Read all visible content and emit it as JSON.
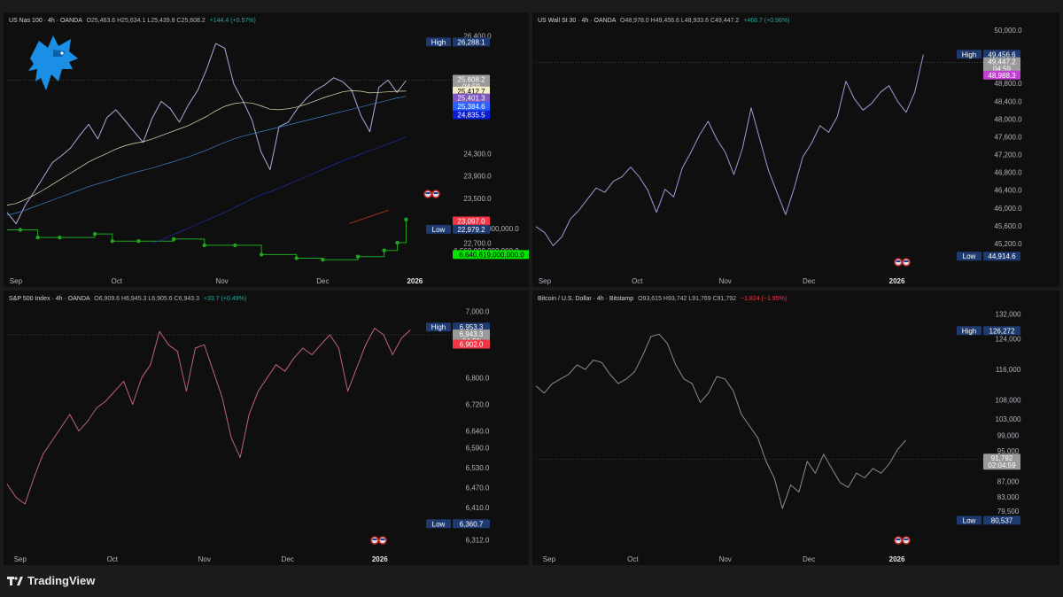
{
  "app": {
    "brand": "TradingView"
  },
  "colors": {
    "background": "#0f0f0f",
    "gap": "#1b1b1b",
    "high_low_badge": "#1e3a6e",
    "price_badge": "#9a9a9a",
    "red_badge": "#f23645",
    "green_badge": "#00e600",
    "purple_badge": "#7e57c2",
    "blue_badge": "#2962ff",
    "navy_badge": "#0b1fd1",
    "magenta_badge": "#c040d0"
  },
  "chart_data": [
    {
      "type": "line",
      "title": "US Nas 100 · 4h · OANDA",
      "ohlc": "O25,463.6 H25,634.1 L25,439.8 C25,608.2",
      "change": "+144.4 (+0.57%)",
      "change_color": "#26a69a",
      "line_color": "#b0a8d8",
      "x_ticks": [
        "Sep",
        "Oct",
        "Nov",
        "Dec",
        "2026"
      ],
      "x_tick_pos": [
        0.02,
        0.25,
        0.49,
        0.72,
        0.93
      ],
      "y_ticks": [
        26400,
        24300,
        23900,
        23500,
        22700
      ],
      "y_range": [
        22300,
        26500
      ],
      "secondary_y_ticks": [
        "6,600,000,000,000.0",
        "6,560,000,000,000.0"
      ],
      "badges": [
        {
          "kind": "high",
          "label": "High",
          "value": "26,288.1",
          "y": 26288.1,
          "color": "#1e3a6e"
        },
        {
          "kind": "last",
          "value": "25,608.2",
          "sub": "04:59",
          "y": 25608.2,
          "color": "#9a9a9a"
        },
        {
          "kind": "value",
          "value": "25,412.7",
          "y": 25412.7,
          "color": "#f5efc8",
          "text": "#000"
        },
        {
          "kind": "value",
          "value": "25,401.3",
          "y": 25290,
          "color": "#7e57c2"
        },
        {
          "kind": "value",
          "value": "25,384.6",
          "y": 25140,
          "color": "#2962ff"
        },
        {
          "kind": "value",
          "value": "24,835.5",
          "y": 24990,
          "color": "#0b1fd1"
        },
        {
          "kind": "value",
          "value": "23,097.0",
          "y": 23097,
          "color": "#f23645"
        },
        {
          "kind": "low",
          "label": "Low",
          "value": "22,979.2",
          "y": 22949,
          "color": "#1e3a6e"
        },
        {
          "kind": "value",
          "value": "6,640,619,000,000.0",
          "y": 22500,
          "color": "#00e600",
          "text": "#000"
        }
      ],
      "series": [
        {
          "values": [
            23250,
            23050,
            23380,
            23620,
            23880,
            24140,
            24260,
            24400,
            24620,
            24820,
            24560,
            24940,
            25080,
            24890,
            24690,
            24500,
            24930,
            25230,
            25100,
            24860,
            25170,
            25420,
            25800,
            26260,
            26180,
            25540,
            25240,
            24900,
            24330,
            24010,
            24780,
            24860,
            25100,
            25280,
            25430,
            25520,
            25650,
            25580,
            25430,
            24980,
            24690,
            25480,
            25610,
            25390,
            25600
          ]
        },
        {
          "values": [
            23380,
            23410,
            23480,
            23560,
            23650,
            23750,
            23850,
            23950,
            24050,
            24150,
            24230,
            24300,
            24380,
            24440,
            24480,
            24510,
            24560,
            24620,
            24680,
            24740,
            24800,
            24880,
            24960,
            25060,
            25140,
            25190,
            25210,
            25200,
            25150,
            25090,
            25080,
            25100,
            25130,
            25180,
            25240,
            25300,
            25350,
            25400,
            25420,
            25410,
            25380,
            25390,
            25400,
            25410,
            25412
          ]
        },
        {
          "values": [
            23200,
            23240,
            23290,
            23350,
            23410,
            23470,
            23530,
            23590,
            23650,
            23710,
            23760,
            23810,
            23860,
            23910,
            23960,
            24000,
            24040,
            24090,
            24140,
            24190,
            24240,
            24300,
            24360,
            24430,
            24500,
            24560,
            24610,
            24650,
            24690,
            24730,
            24770,
            24810,
            24850,
            24890,
            24930,
            24970,
            25010,
            25050,
            25090,
            25130,
            25170,
            25210,
            25250,
            25290,
            25320
          ]
        },
        {
          "values": [
            null,
            null,
            null,
            null,
            null,
            null,
            null,
            null,
            null,
            null,
            null,
            null,
            null,
            null,
            null,
            null,
            22700,
            22760,
            22830,
            22900,
            22970,
            23040,
            23110,
            23180,
            23250,
            23330,
            23410,
            23490,
            23560,
            23620,
            23680,
            23750,
            23820,
            23890,
            23960,
            24030,
            24100,
            24170,
            24230,
            24290,
            24350,
            24410,
            24470,
            24530,
            24600
          ]
        }
      ],
      "red_trend": [
        [
          0.78,
          23050
        ],
        [
          0.87,
          23290
        ]
      ],
      "green_steps": [
        [
          0.0,
          6620
        ],
        [
          0.03,
          6620
        ],
        [
          0.07,
          6605
        ],
        [
          0.12,
          6605
        ],
        [
          0.2,
          6612
        ],
        [
          0.24,
          6598
        ],
        [
          0.3,
          6598
        ],
        [
          0.38,
          6602
        ],
        [
          0.45,
          6590
        ],
        [
          0.52,
          6590
        ],
        [
          0.58,
          6572
        ],
        [
          0.66,
          6565
        ],
        [
          0.72,
          6562
        ],
        [
          0.8,
          6568
        ],
        [
          0.86,
          6580
        ],
        [
          0.89,
          6595
        ],
        [
          0.91,
          6640
        ]
      ]
    },
    {
      "type": "line",
      "title": "US Wall St 30 · 4h · OANDA",
      "ohlc": "O48,978.0 H49,456.6 L48,933.6 C49,447.2",
      "change": "+468.7 (+0.96%)",
      "change_color": "#26a69a",
      "line_color": "#a894d8",
      "x_ticks": [
        "Sep",
        "Oct",
        "Nov",
        "Dec",
        "2026"
      ],
      "x_tick_pos": [
        0.02,
        0.23,
        0.43,
        0.62,
        0.82
      ],
      "y_ticks": [
        50000,
        48800,
        48400,
        48000,
        47600,
        47200,
        46800,
        46400,
        46000,
        45600,
        45200
      ],
      "y_range": [
        44700,
        50000
      ],
      "badges": [
        {
          "kind": "high",
          "label": "High",
          "value": "49,456.6",
          "y": 49456.6,
          "color": "#1e3a6e"
        },
        {
          "kind": "last",
          "value": "49,447.2",
          "sub": "04:59",
          "y": 49270,
          "color": "#9a9a9a"
        },
        {
          "kind": "value",
          "value": "48,988.3",
          "y": 48988.3,
          "color": "#c040d0"
        },
        {
          "kind": "low",
          "label": "Low",
          "value": "44,914.6",
          "y": 44914.6,
          "color": "#1e3a6e"
        }
      ],
      "series": [
        {
          "values": [
            45580,
            45450,
            45150,
            45350,
            45750,
            45950,
            46200,
            46450,
            46350,
            46600,
            46700,
            46920,
            46700,
            46400,
            45900,
            46420,
            46250,
            46900,
            47250,
            47640,
            47950,
            47550,
            47250,
            46750,
            47350,
            48250,
            47550,
            46850,
            46350,
            45850,
            46450,
            47150,
            47450,
            47850,
            47700,
            48050,
            48850,
            48450,
            48200,
            48350,
            48600,
            48750,
            48400,
            48150,
            48600,
            49450
          ]
        }
      ]
    },
    {
      "type": "line",
      "title": "S&P 500 Index · 4h · OANDA",
      "ohlc": "O6,909.6 H6,945.3 L6,905.6 C6,943.3",
      "change": "+33.7 (+0.49%)",
      "change_color": "#26a69a",
      "line_color": "#c06080",
      "x_ticks": [
        "Sep",
        "Oct",
        "Nov",
        "Dec",
        "2026"
      ],
      "x_tick_pos": [
        0.03,
        0.24,
        0.45,
        0.64,
        0.85
      ],
      "y_ticks": [
        7000,
        6800,
        6720,
        6640,
        6590,
        6530,
        6470,
        6410,
        6312
      ],
      "y_range": [
        6300,
        7010
      ],
      "badges": [
        {
          "kind": "high",
          "label": "High",
          "value": "6,953.3",
          "y": 6953.3,
          "color": "#1e3a6e"
        },
        {
          "kind": "last",
          "value": "6,943.3",
          "sub": "04:59",
          "y": 6930,
          "color": "#9a9a9a"
        },
        {
          "kind": "value",
          "value": "6,902.0",
          "y": 6902,
          "color": "#f23645"
        },
        {
          "kind": "low",
          "label": "Low",
          "value": "6,360.7",
          "y": 6360.7,
          "color": "#1e3a6e"
        }
      ],
      "series": [
        {
          "values": [
            6480,
            6440,
            6420,
            6500,
            6570,
            6610,
            6650,
            6690,
            6640,
            6670,
            6710,
            6730,
            6760,
            6790,
            6720,
            6800,
            6840,
            6940,
            6900,
            6880,
            6760,
            6890,
            6900,
            6820,
            6740,
            6620,
            6560,
            6690,
            6760,
            6800,
            6840,
            6820,
            6860,
            6890,
            6870,
            6900,
            6930,
            6890,
            6760,
            6830,
            6900,
            6950,
            6930,
            6870,
            6920,
            6945
          ]
        }
      ]
    },
    {
      "type": "line",
      "title": "Bitcoin / U.S. Dollar · 4h · Bitstamp",
      "ohlc": "O93,615 H93,742 L91,769 C91,792",
      "change": "−1,824 (−1.95%)",
      "change_color": "#f23645",
      "line_color": "#8c8c8c",
      "x_ticks": [
        "Sep",
        "Oct",
        "Nov",
        "Dec",
        "2026"
      ],
      "x_tick_pos": [
        0.03,
        0.22,
        0.43,
        0.62,
        0.82
      ],
      "y_ticks": [
        132000,
        124000,
        116000,
        108000,
        103000,
        99000,
        95000,
        87000,
        83000,
        79500
      ],
      "badges": [
        {
          "kind": "high",
          "label": "High",
          "value": "126,272",
          "y_frac": 0.095,
          "color": "#1e3a6e"
        },
        {
          "kind": "last",
          "value": "91,792",
          "sub": "02:04:59",
          "y_frac": 0.64,
          "color": "#9a9a9a"
        },
        {
          "kind": "low",
          "label": "Low",
          "value": "80,537",
          "y_frac": 0.9,
          "color": "#1e3a6e"
        }
      ],
      "tick_y_frac": [
        0.025,
        0.13,
        0.26,
        0.39,
        0.47,
        0.54,
        0.605,
        0.735,
        0.8,
        0.86
      ],
      "series": [
        {
          "values_frac": [
            0.33,
            0.36,
            0.32,
            0.3,
            0.28,
            0.24,
            0.26,
            0.22,
            0.23,
            0.28,
            0.32,
            0.3,
            0.27,
            0.2,
            0.12,
            0.11,
            0.15,
            0.24,
            0.3,
            0.32,
            0.4,
            0.36,
            0.29,
            0.3,
            0.35,
            0.45,
            0.5,
            0.55,
            0.65,
            0.72,
            0.85,
            0.75,
            0.78,
            0.65,
            0.7,
            0.62,
            0.68,
            0.74,
            0.76,
            0.7,
            0.72,
            0.68,
            0.7,
            0.66,
            0.6,
            0.56
          ]
        }
      ]
    }
  ]
}
